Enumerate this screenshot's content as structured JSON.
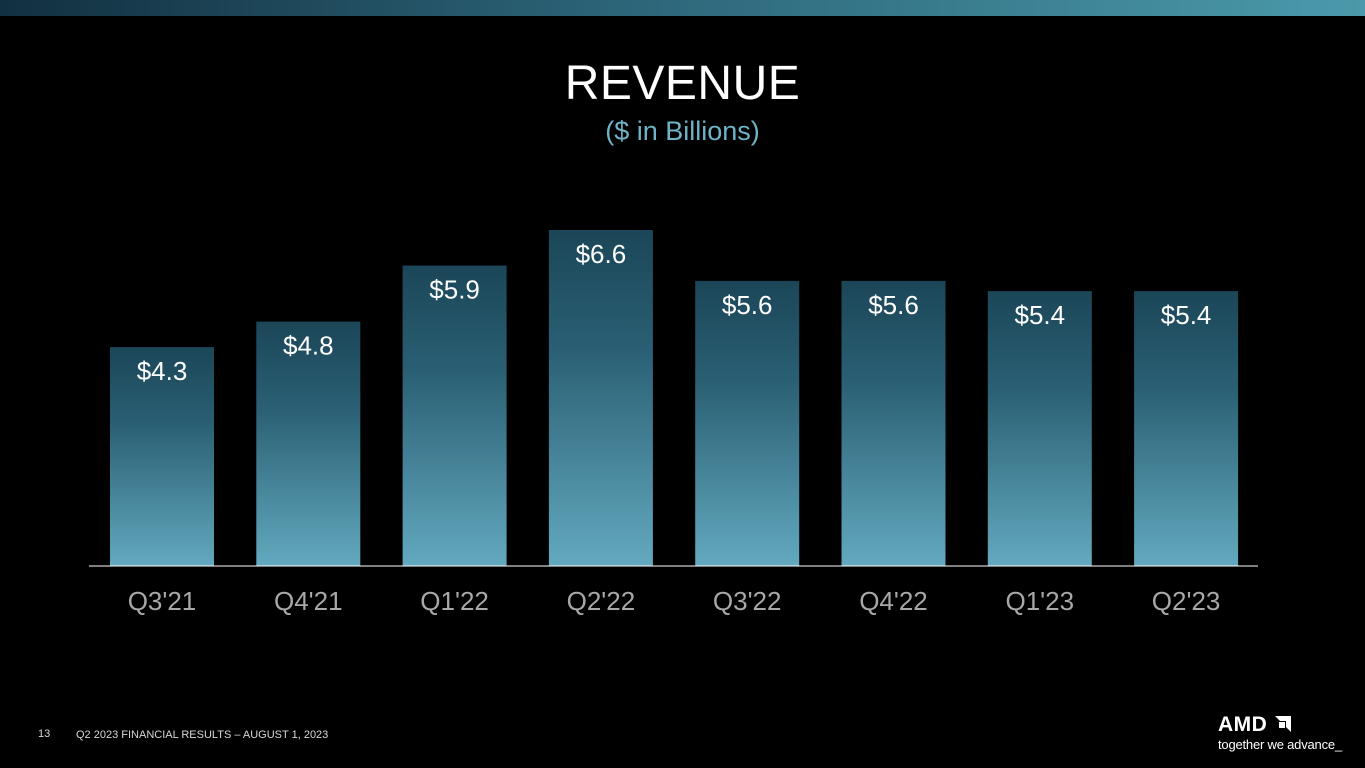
{
  "slide": {
    "title": "REVENUE",
    "subtitle": "($ in Billions)",
    "page_number": "13",
    "footer": "Q2 2023 FINANCIAL RESULTS – AUGUST 1, 2023"
  },
  "brand": {
    "logo_text": "AMD",
    "tagline": "together we advance_"
  },
  "colors": {
    "background": "#000000",
    "bar_top": "#1b4658",
    "bar_bottom": "#63a9bf",
    "subtitle": "#6fb3c8",
    "tick_label": "#a8a8a8",
    "value_label": "#ffffff"
  },
  "chart_data": {
    "type": "bar",
    "title": "REVENUE",
    "subtitle": "($ in Billions)",
    "categories": [
      "Q3'21",
      "Q4'21",
      "Q1'22",
      "Q2'22",
      "Q3'22",
      "Q4'22",
      "Q1'23",
      "Q2'23"
    ],
    "values": [
      4.3,
      4.8,
      5.9,
      6.6,
      5.6,
      5.6,
      5.4,
      5.4
    ],
    "labels": [
      "$4.3",
      "$4.8",
      "$5.9",
      "$6.6",
      "$5.6",
      "$5.6",
      "$5.4",
      "$5.4"
    ],
    "xlabel": "",
    "ylabel": "",
    "ylim": [
      0,
      6.6
    ],
    "grid": false,
    "legend": "none"
  }
}
